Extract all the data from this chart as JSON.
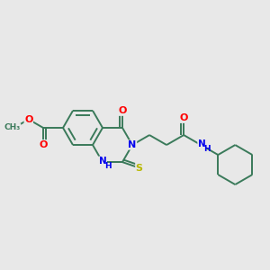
{
  "background_color": "#e8e8e8",
  "bond_color": "#3a7a5a",
  "atom_colors": {
    "O": "#ff0000",
    "N": "#0000ee",
    "S": "#b8b800",
    "C": "#3a7a5a",
    "H": "#3a7a5a"
  },
  "figsize": [
    3.0,
    3.0
  ],
  "dpi": 100
}
